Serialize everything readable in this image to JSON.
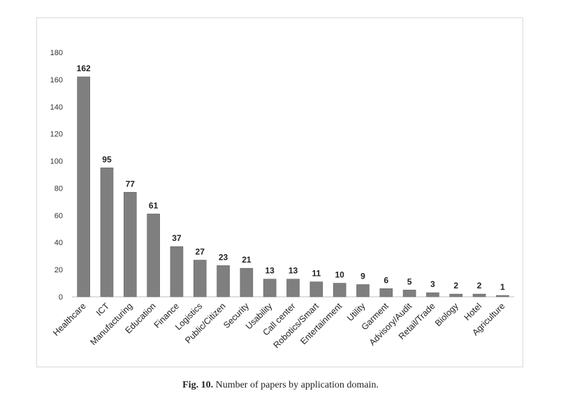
{
  "chart_data": {
    "type": "bar",
    "title": "",
    "xlabel": "",
    "ylabel": "",
    "ylim": [
      0,
      180
    ],
    "yticks": [
      0,
      20,
      40,
      60,
      80,
      100,
      120,
      140,
      160,
      180
    ],
    "grid": false,
    "bar_color": "#7f7f7f",
    "categories": [
      "Healthcare",
      "ICT",
      "Manufacturing",
      "Education",
      "Finance",
      "Logistics",
      "Public/Citizen",
      "Security",
      "Usability",
      "Call center",
      "Robotics/Smart",
      "Entertainment",
      "Utility",
      "Garment",
      "Advisory/Audit",
      "Retail/Trade",
      "Biology",
      "Hotel",
      "Agriculture"
    ],
    "values": [
      162,
      95,
      77,
      61,
      37,
      27,
      23,
      21,
      13,
      13,
      11,
      10,
      9,
      6,
      5,
      3,
      2,
      2,
      1
    ]
  },
  "caption": {
    "label": "Fig. 10.",
    "text": "Number of papers by application domain."
  }
}
